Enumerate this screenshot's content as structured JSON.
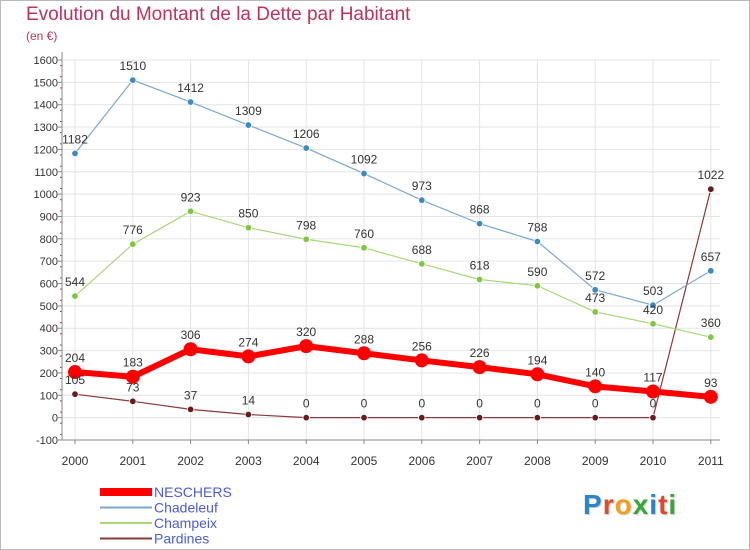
{
  "header": {
    "title": "Evolution du Montant de la Dette par Habitant",
    "subtitle": "(en €)"
  },
  "logo": {
    "text": "Proxiti",
    "colors": [
      "#2a86c8",
      "#e04a2a",
      "#f0a020",
      "#3aa63a",
      "#2a86c8",
      "#e04a2a",
      "#3aa63a"
    ]
  },
  "chart_data": {
    "type": "line",
    "x": [
      "2000",
      "2001",
      "2002",
      "2003",
      "2004",
      "2005",
      "2006",
      "2007",
      "2008",
      "2009",
      "2010",
      "2011"
    ],
    "y_ticks": [
      "-100",
      "0",
      "100",
      "200",
      "300",
      "400",
      "500",
      "600",
      "700",
      "800",
      "900",
      "1000",
      "1100",
      "1200",
      "1300",
      "1400",
      "1500",
      "1600"
    ],
    "ylim": [
      -100,
      1600
    ],
    "grid": true,
    "legend_position": "bottom-left",
    "series": [
      {
        "name": "NESCHERS",
        "color": "#ff0000",
        "point_color": "#ff0000",
        "width": 6,
        "marker": 7,
        "values": [
          204,
          183,
          306,
          274,
          320,
          288,
          256,
          226,
          194,
          140,
          117,
          93
        ],
        "labels": [
          "204",
          "183",
          "306",
          "274",
          "320",
          "288",
          "256",
          "226",
          "194",
          "140",
          "117",
          "93"
        ]
      },
      {
        "name": "Chadeleuf",
        "color": "#7aa7d4",
        "point_color": "#3b8ac8",
        "width": 1.2,
        "marker": 3.3,
        "values": [
          1182,
          1510,
          1412,
          1309,
          1206,
          1092,
          973,
          868,
          788,
          572,
          503,
          657
        ],
        "labels": [
          "1182",
          "1510",
          "1412",
          "1309",
          "1206",
          "1092",
          "973",
          "868",
          "788",
          "572",
          "503",
          "657"
        ]
      },
      {
        "name": "Champeix",
        "color": "#a8d878",
        "point_color": "#7cc840",
        "width": 1.2,
        "marker": 3.3,
        "values": [
          544,
          776,
          923,
          850,
          798,
          760,
          688,
          618,
          590,
          473,
          420,
          360
        ],
        "labels": [
          "544",
          "776",
          "923",
          "850",
          "798",
          "760",
          "688",
          "618",
          "590",
          "473",
          "420",
          "360"
        ]
      },
      {
        "name": "Pardines",
        "color": "#8a3a3a",
        "point_color": "#6a1a1a",
        "width": 1.2,
        "marker": 3.3,
        "values": [
          105,
          73,
          37,
          14,
          0,
          0,
          0,
          0,
          0,
          0,
          0,
          1022
        ],
        "labels": [
          "105",
          "73",
          "37",
          "14",
          "0",
          "0",
          "0",
          "0",
          "0",
          "0",
          "0",
          "1022"
        ]
      }
    ]
  }
}
